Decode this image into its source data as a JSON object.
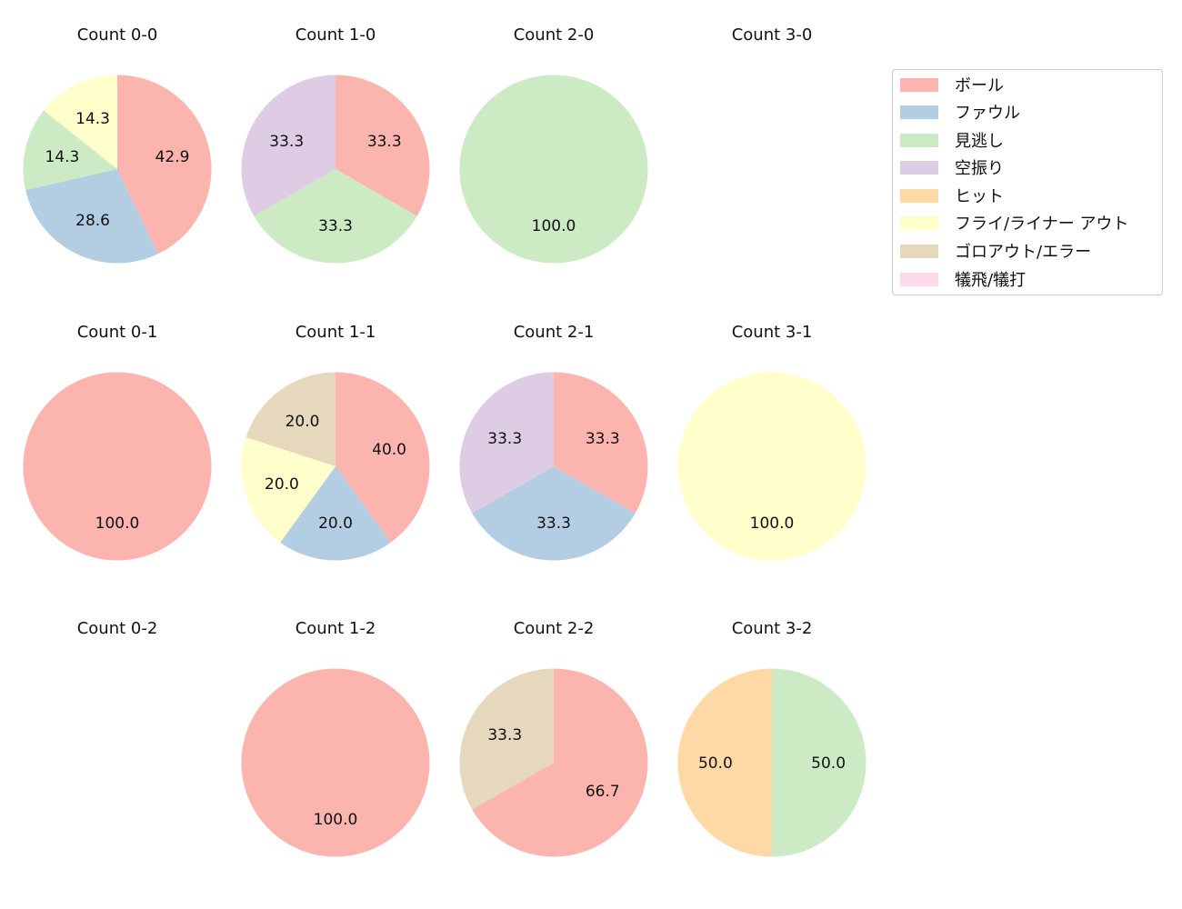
{
  "legend": {
    "items": [
      {
        "label": "ボール",
        "color": "#fbb4ae"
      },
      {
        "label": "ファウル",
        "color": "#b3cde3"
      },
      {
        "label": "見逃し",
        "color": "#ccebc5"
      },
      {
        "label": "空振り",
        "color": "#decbe4"
      },
      {
        "label": "ヒット",
        "color": "#fed9a6"
      },
      {
        "label": "フライ/ライナー アウト",
        "color": "#ffffcc"
      },
      {
        "label": "ゴロアウト/エラー",
        "color": "#e5d8bd"
      },
      {
        "label": "犠飛/犠打",
        "color": "#fddaec"
      }
    ]
  },
  "chart_data": [
    {
      "type": "pie",
      "title": "Count 0-0",
      "row": 0,
      "col": 0,
      "slices": [
        {
          "label": "ボール",
          "value": 42.9
        },
        {
          "label": "ファウル",
          "value": 28.6
        },
        {
          "label": "見逃し",
          "value": 14.3
        },
        {
          "label": "フライ/ライナー アウト",
          "value": 14.3
        }
      ]
    },
    {
      "type": "pie",
      "title": "Count 1-0",
      "row": 0,
      "col": 1,
      "slices": [
        {
          "label": "ボール",
          "value": 33.3
        },
        {
          "label": "見逃し",
          "value": 33.3
        },
        {
          "label": "空振り",
          "value": 33.3
        }
      ]
    },
    {
      "type": "pie",
      "title": "Count 2-0",
      "row": 0,
      "col": 2,
      "slices": [
        {
          "label": "見逃し",
          "value": 100.0
        }
      ]
    },
    {
      "type": "pie",
      "title": "Count 3-0",
      "row": 0,
      "col": 3,
      "slices": []
    },
    {
      "type": "pie",
      "title": "Count 0-1",
      "row": 1,
      "col": 0,
      "slices": [
        {
          "label": "ボール",
          "value": 100.0
        }
      ]
    },
    {
      "type": "pie",
      "title": "Count 1-1",
      "row": 1,
      "col": 1,
      "slices": [
        {
          "label": "ボール",
          "value": 40.0
        },
        {
          "label": "ファウル",
          "value": 20.0
        },
        {
          "label": "フライ/ライナー アウト",
          "value": 20.0
        },
        {
          "label": "ゴロアウト/エラー",
          "value": 20.0
        }
      ]
    },
    {
      "type": "pie",
      "title": "Count 2-1",
      "row": 1,
      "col": 2,
      "slices": [
        {
          "label": "ボール",
          "value": 33.3
        },
        {
          "label": "ファウル",
          "value": 33.3
        },
        {
          "label": "空振り",
          "value": 33.3
        }
      ]
    },
    {
      "type": "pie",
      "title": "Count 3-1",
      "row": 1,
      "col": 3,
      "slices": [
        {
          "label": "フライ/ライナー アウト",
          "value": 100.0
        }
      ]
    },
    {
      "type": "pie",
      "title": "Count 0-2",
      "row": 2,
      "col": 0,
      "slices": []
    },
    {
      "type": "pie",
      "title": "Count 1-2",
      "row": 2,
      "col": 1,
      "slices": [
        {
          "label": "ボール",
          "value": 100.0
        }
      ]
    },
    {
      "type": "pie",
      "title": "Count 2-2",
      "row": 2,
      "col": 2,
      "slices": [
        {
          "label": "ボール",
          "value": 66.7
        },
        {
          "label": "ゴロアウト/エラー",
          "value": 33.3
        }
      ]
    },
    {
      "type": "pie",
      "title": "Count 3-2",
      "row": 2,
      "col": 3,
      "slices": [
        {
          "label": "見逃し",
          "value": 50.0
        },
        {
          "label": "ヒット",
          "value": 50.0
        }
      ]
    }
  ]
}
